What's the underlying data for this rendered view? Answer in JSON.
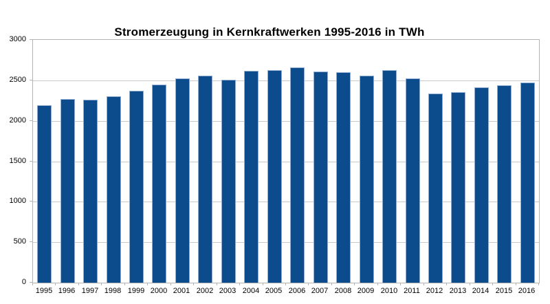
{
  "chart_data": {
    "type": "bar",
    "title": "Stromerzeugung in Kernkraftwerken 1995-2016 in TWh",
    "categories": [
      "1995",
      "1996",
      "1997",
      "1998",
      "1999",
      "2000",
      "2001",
      "2002",
      "2003",
      "2004",
      "2005",
      "2006",
      "2007",
      "2008",
      "2009",
      "2010",
      "2011",
      "2012",
      "2013",
      "2014",
      "2015",
      "2016"
    ],
    "values": [
      2190,
      2270,
      2260,
      2300,
      2375,
      2450,
      2520,
      2555,
      2505,
      2615,
      2625,
      2660,
      2605,
      2600,
      2560,
      2630,
      2520,
      2340,
      2355,
      2410,
      2440,
      2475
    ],
    "xlabel": "",
    "ylabel": "",
    "ylim": [
      0,
      3000
    ],
    "yticks": [
      0,
      500,
      1000,
      1500,
      2000,
      2500,
      3000
    ],
    "grid": true,
    "legend_position": "none",
    "colors": {
      "bar": "#0d4c8c",
      "bar_edge": "#8fabd0",
      "gridline": "#c9c9c9",
      "axis": "#b3b3b3",
      "text": "#000000",
      "background": "#ffffff"
    }
  }
}
